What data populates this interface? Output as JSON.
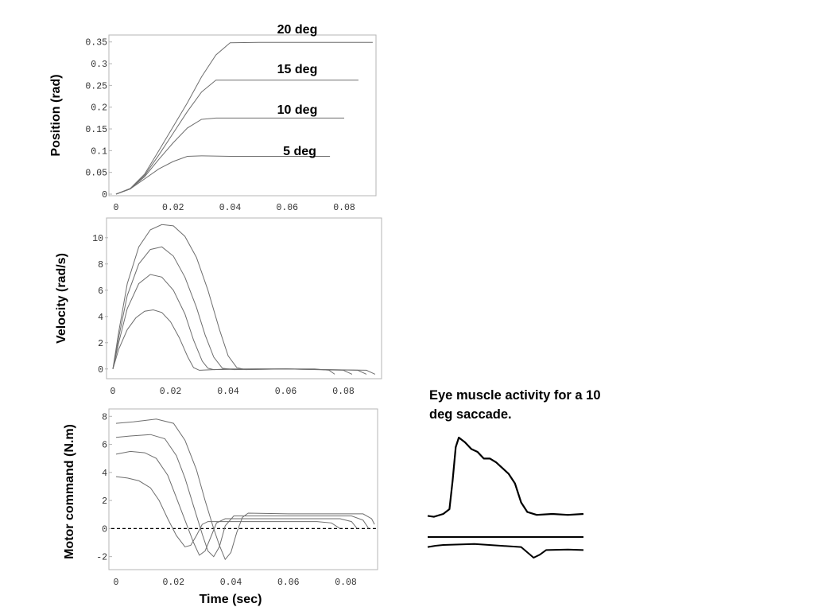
{
  "colors": {
    "curve": "#6e6e6e",
    "frame": "#b5b5b5",
    "text": "#000000"
  },
  "xlabel": "Time (sec)",
  "chart_data": [
    {
      "type": "line",
      "ylabel": "Position (rad)",
      "xlim": [
        0,
        0.092
      ],
      "ylim": [
        0,
        0.355
      ],
      "xticks": [
        "0",
        "0.02",
        "0.04",
        "0.06",
        "0.08"
      ],
      "yticks": [
        "0",
        "0.05",
        "0.1",
        "0.15",
        "0.2",
        "0.25",
        "0.3",
        "0.35"
      ],
      "series": [
        {
          "name": "5 deg",
          "x": [
            0,
            0.005,
            0.01,
            0.015,
            0.02,
            0.025,
            0.03,
            0.04,
            0.06,
            0.075
          ],
          "y": [
            0,
            0.012,
            0.035,
            0.058,
            0.075,
            0.087,
            0.088,
            0.087,
            0.087,
            0.087
          ]
        },
        {
          "name": "10 deg",
          "x": [
            0,
            0.005,
            0.01,
            0.015,
            0.02,
            0.025,
            0.03,
            0.035,
            0.05,
            0.08
          ],
          "y": [
            0,
            0.012,
            0.04,
            0.08,
            0.118,
            0.152,
            0.172,
            0.175,
            0.175,
            0.175
          ]
        },
        {
          "name": "15 deg",
          "x": [
            0,
            0.005,
            0.01,
            0.015,
            0.02,
            0.025,
            0.03,
            0.035,
            0.05,
            0.085
          ],
          "y": [
            0,
            0.012,
            0.043,
            0.09,
            0.14,
            0.19,
            0.235,
            0.262,
            0.262,
            0.262
          ]
        },
        {
          "name": "20 deg",
          "x": [
            0,
            0.005,
            0.01,
            0.015,
            0.02,
            0.025,
            0.03,
            0.035,
            0.04,
            0.05,
            0.09
          ],
          "y": [
            0,
            0.013,
            0.046,
            0.1,
            0.155,
            0.21,
            0.27,
            0.32,
            0.348,
            0.349,
            0.349
          ]
        }
      ]
    },
    {
      "type": "line",
      "ylabel": "Velocity (rad/s)",
      "xlim": [
        0,
        0.092
      ],
      "ylim": [
        -0.5,
        11.2
      ],
      "xticks": [
        "0",
        "0.02",
        "0.04",
        "0.06",
        "0.08"
      ],
      "yticks": [
        "0",
        "2",
        "4",
        "6",
        "8",
        "10"
      ],
      "series": [
        {
          "x": [
            0,
            0.002,
            0.005,
            0.008,
            0.011,
            0.014,
            0.017,
            0.02,
            0.023,
            0.026,
            0.028,
            0.03,
            0.035,
            0.05,
            0.07,
            0.075,
            0.077
          ],
          "y": [
            0,
            1.5,
            3.0,
            3.9,
            4.4,
            4.5,
            4.3,
            3.6,
            2.4,
            0.9,
            0.1,
            -0.1,
            -0.05,
            0,
            0,
            -0.1,
            -0.4
          ]
        },
        {
          "x": [
            0,
            0.002,
            0.005,
            0.009,
            0.013,
            0.017,
            0.021,
            0.025,
            0.028,
            0.031,
            0.033,
            0.035,
            0.04,
            0.06,
            0.08,
            0.083
          ],
          "y": [
            0,
            2.0,
            4.6,
            6.5,
            7.2,
            7.0,
            6.0,
            4.2,
            2.2,
            0.6,
            0.05,
            -0.05,
            0,
            0,
            -0.1,
            -0.4
          ]
        },
        {
          "x": [
            0,
            0.002,
            0.005,
            0.009,
            0.013,
            0.017,
            0.021,
            0.025,
            0.029,
            0.032,
            0.035,
            0.038,
            0.042,
            0.06,
            0.085,
            0.088
          ],
          "y": [
            0,
            2.4,
            5.6,
            8.0,
            9.1,
            9.3,
            8.6,
            7.0,
            4.7,
            2.6,
            0.9,
            0.05,
            -0.05,
            0,
            -0.1,
            -0.4
          ]
        },
        {
          "x": [
            0,
            0.002,
            0.005,
            0.009,
            0.013,
            0.017,
            0.021,
            0.025,
            0.029,
            0.033,
            0.037,
            0.04,
            0.043,
            0.046,
            0.06,
            0.088,
            0.091
          ],
          "y": [
            0,
            2.8,
            6.5,
            9.3,
            10.6,
            11.0,
            10.9,
            10.1,
            8.5,
            6.0,
            3.0,
            1.0,
            0.1,
            -0.05,
            0,
            -0.1,
            -0.4
          ]
        }
      ]
    },
    {
      "type": "line",
      "ylabel": "Motor command (N.m)",
      "xlabel": "Time (sec)",
      "xlim": [
        0,
        0.092
      ],
      "ylim": [
        -2.7,
        8.3
      ],
      "xticks": [
        "0",
        "0.02",
        "0.04",
        "0.06",
        "0.08"
      ],
      "yticks": [
        "-2",
        "0",
        "2",
        "4",
        "6",
        "8"
      ],
      "reference_line": {
        "y": 0,
        "style": "dashed"
      },
      "series": [
        {
          "x": [
            0,
            0.004,
            0.008,
            0.012,
            0.015,
            0.018,
            0.021,
            0.024,
            0.026,
            0.028,
            0.03,
            0.032,
            0.036,
            0.045,
            0.07,
            0.075,
            0.078
          ],
          "y": [
            3.7,
            3.6,
            3.4,
            2.9,
            2.0,
            0.7,
            -0.5,
            -1.3,
            -1.2,
            -0.5,
            0.3,
            0.5,
            0.5,
            0.5,
            0.5,
            0.4,
            0
          ]
        },
        {
          "x": [
            0,
            0.005,
            0.01,
            0.014,
            0.018,
            0.021,
            0.024,
            0.027,
            0.029,
            0.031,
            0.033,
            0.035,
            0.038,
            0.05,
            0.078,
            0.082,
            0.084
          ],
          "y": [
            5.3,
            5.5,
            5.4,
            5.0,
            3.8,
            2.2,
            0.6,
            -1.0,
            -1.9,
            -1.6,
            -0.6,
            0.4,
            0.7,
            0.7,
            0.7,
            0.5,
            0
          ]
        },
        {
          "x": [
            0,
            0.005,
            0.012,
            0.017,
            0.021,
            0.024,
            0.027,
            0.03,
            0.032,
            0.034,
            0.036,
            0.038,
            0.041,
            0.055,
            0.082,
            0.086,
            0.088
          ],
          "y": [
            6.5,
            6.6,
            6.7,
            6.4,
            5.2,
            3.6,
            1.6,
            -0.4,
            -1.6,
            -2.0,
            -1.3,
            0.2,
            0.9,
            0.9,
            0.9,
            0.6,
            0
          ]
        },
        {
          "x": [
            0,
            0.006,
            0.014,
            0.02,
            0.024,
            0.028,
            0.031,
            0.034,
            0.036,
            0.038,
            0.04,
            0.042,
            0.044,
            0.046,
            0.06,
            0.086,
            0.089,
            0.09
          ],
          "y": [
            7.5,
            7.6,
            7.8,
            7.5,
            6.3,
            4.2,
            2.0,
            0.0,
            -1.2,
            -2.2,
            -1.7,
            -0.3,
            0.8,
            1.1,
            1.05,
            1.05,
            0.7,
            0.3
          ]
        }
      ]
    }
  ],
  "emg": {
    "title": "Eye muscle activity for a 10 deg saccade.",
    "agonist_trace": [
      [
        0,
        0.82
      ],
      [
        0.04,
        0.83
      ],
      [
        0.1,
        0.8
      ],
      [
        0.14,
        0.75
      ],
      [
        0.16,
        0.45
      ],
      [
        0.18,
        0.1
      ],
      [
        0.2,
        0.0
      ],
      [
        0.24,
        0.05
      ],
      [
        0.28,
        0.12
      ],
      [
        0.32,
        0.15
      ],
      [
        0.36,
        0.22
      ],
      [
        0.4,
        0.22
      ],
      [
        0.44,
        0.26
      ],
      [
        0.48,
        0.32
      ],
      [
        0.52,
        0.38
      ],
      [
        0.56,
        0.48
      ],
      [
        0.6,
        0.68
      ],
      [
        0.64,
        0.78
      ],
      [
        0.7,
        0.81
      ],
      [
        0.8,
        0.8
      ],
      [
        0.9,
        0.81
      ],
      [
        1.0,
        0.8
      ]
    ],
    "antagonist_trace": [
      [
        0,
        0.3
      ],
      [
        0.05,
        0.25
      ],
      [
        0.1,
        0.22
      ],
      [
        0.3,
        0.18
      ],
      [
        0.6,
        0.3
      ],
      [
        0.68,
        0.72
      ],
      [
        0.72,
        0.6
      ],
      [
        0.76,
        0.42
      ],
      [
        0.9,
        0.4
      ],
      [
        1.0,
        0.42
      ]
    ]
  },
  "texts": {
    "label_20": "20 deg",
    "label_15": "15 deg",
    "label_10": "10 deg",
    "label_5": "5 deg"
  }
}
